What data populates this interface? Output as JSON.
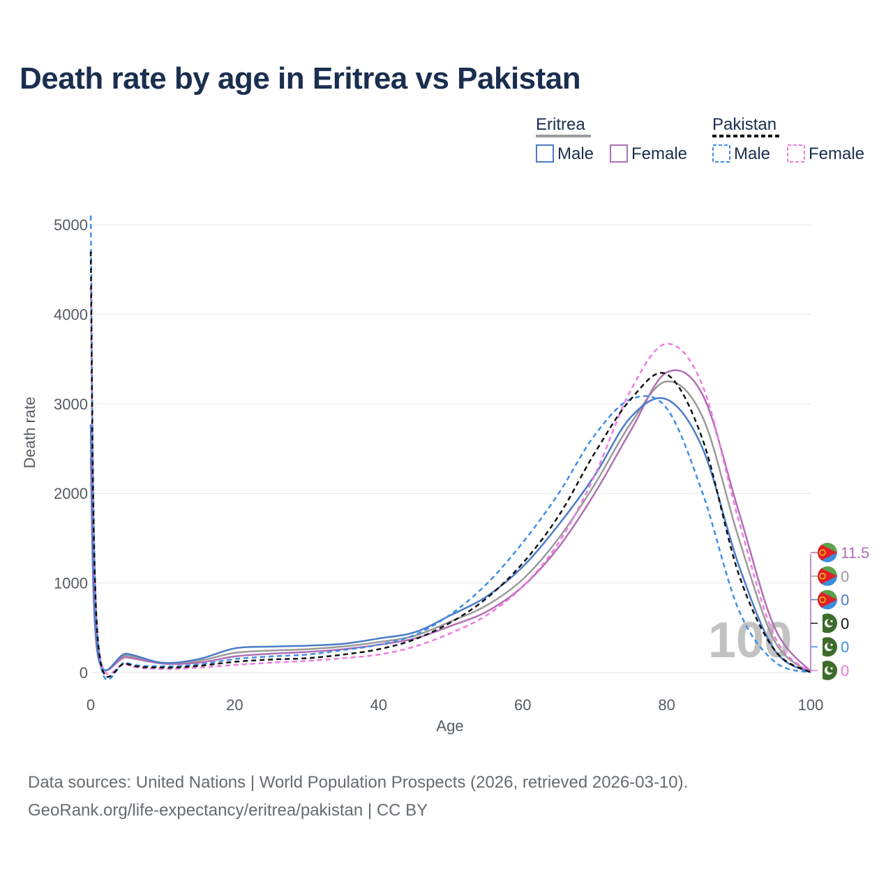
{
  "title": "Death rate by age in Eritrea vs Pakistan",
  "legend": {
    "groups": [
      {
        "name": "Eritrea",
        "items": [
          "Male",
          "Female"
        ]
      },
      {
        "name": "Pakistan",
        "items": [
          "Male",
          "Female"
        ]
      }
    ]
  },
  "year_label": "100",
  "source_line1": "Data sources: United Nations | World Population Prospects (2026, retrieved 2026-03-10).",
  "source_line2": "GeoRank.org/life-expectancy/eritrea/pakistan | CC BY",
  "colors": {
    "eritrea_male": "#4a7cc9",
    "eritrea_female": "#b06fb5",
    "eritrea_total": "#9a9a9a",
    "pakistan_male": "#3d8ee8",
    "pakistan_female": "#f07ae0",
    "pakistan_total": "#111111",
    "grid": "#e6e6e6",
    "eritrea_flag_green": "#5aa34a",
    "eritrea_flag_blue": "#3b8fe0",
    "eritrea_flag_red": "#e0202a",
    "eritrea_flag_yellow": "#f5c400",
    "pakistan_flag_green": "#3c6b2a"
  },
  "end_labels": [
    {
      "text": "11.5",
      "series": "eritrea_female",
      "flag": "eritrea"
    },
    {
      "text": "0",
      "series": "eritrea_total",
      "flag": "eritrea"
    },
    {
      "text": "0",
      "series": "eritrea_male",
      "flag": "eritrea"
    },
    {
      "text": "0",
      "series": "pakistan_total",
      "flag": "pakistan"
    },
    {
      "text": "0",
      "series": "pakistan_male",
      "flag": "pakistan"
    },
    {
      "text": "0",
      "series": "pakistan_female",
      "flag": "pakistan"
    }
  ],
  "chart_data": {
    "type": "line",
    "title": "Death rate by age in Eritrea vs Pakistan",
    "xlabel": "Age",
    "ylabel": "Death rate",
    "xlim": [
      0,
      100
    ],
    "ylim": [
      0,
      5000
    ],
    "xticks": [
      0,
      20,
      40,
      60,
      80,
      100
    ],
    "yticks": [
      0,
      1000,
      2000,
      3000,
      4000,
      5000
    ],
    "grid": true,
    "legend_position": "top-right",
    "x": [
      0,
      1,
      5,
      10,
      15,
      20,
      25,
      30,
      35,
      40,
      45,
      50,
      55,
      60,
      65,
      70,
      75,
      80,
      85,
      90,
      95,
      100
    ],
    "series": [
      {
        "name": "Eritrea Male",
        "key": "eritrea_male",
        "country": "Eritrea",
        "dash": false,
        "values": [
          2770,
          210,
          210,
          110,
          150,
          270,
          290,
          300,
          320,
          380,
          450,
          640,
          850,
          1180,
          1650,
          2200,
          2850,
          3050,
          2500,
          1200,
          250,
          0
        ]
      },
      {
        "name": "Eritrea Female",
        "key": "eritrea_female",
        "country": "Eritrea",
        "dash": false,
        "values": [
          2400,
          190,
          170,
          100,
          110,
          180,
          210,
          230,
          260,
          310,
          380,
          520,
          680,
          960,
          1400,
          2000,
          2700,
          3350,
          3100,
          1800,
          500,
          11.5
        ]
      },
      {
        "name": "Eritrea Total",
        "key": "eritrea_total",
        "country": "Eritrea",
        "dash": false,
        "values": [
          2600,
          200,
          190,
          105,
          130,
          220,
          245,
          260,
          290,
          340,
          410,
          570,
          750,
          1040,
          1500,
          2100,
          2780,
          3250,
          2850,
          1500,
          350,
          0
        ]
      },
      {
        "name": "Pakistan Male",
        "key": "pakistan_male",
        "country": "Pakistan",
        "dash": true,
        "values": [
          5100,
          350,
          110,
          70,
          90,
          150,
          180,
          200,
          250,
          310,
          420,
          650,
          990,
          1450,
          2000,
          2650,
          3050,
          2950,
          2000,
          700,
          120,
          0
        ]
      },
      {
        "name": "Pakistan Female",
        "key": "pakistan_female",
        "country": "Pakistan",
        "dash": true,
        "values": [
          4300,
          370,
          90,
          40,
          55,
          85,
          110,
          130,
          160,
          200,
          290,
          440,
          640,
          960,
          1450,
          2200,
          3150,
          3670,
          3200,
          1700,
          400,
          0
        ]
      },
      {
        "name": "Pakistan Total",
        "key": "pakistan_total",
        "country": "Pakistan",
        "dash": true,
        "values": [
          4700,
          360,
          100,
          55,
          75,
          120,
          145,
          160,
          200,
          260,
          370,
          560,
          830,
          1220,
          1750,
          2450,
          3050,
          3330,
          2600,
          1100,
          250,
          0
        ]
      }
    ]
  }
}
